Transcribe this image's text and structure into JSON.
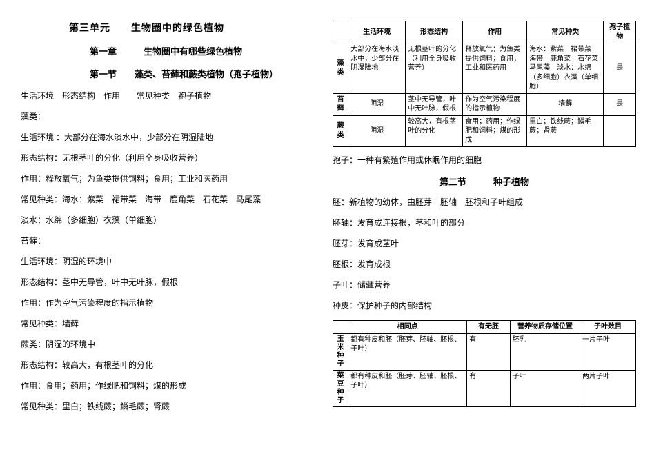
{
  "left": {
    "unit": "第三单元　　生物圈中的绿色植物",
    "chapter": "第一章　　　生物圈中有哪些绿色植物",
    "section": "第一节　　藻类、苔藓和蕨类植物（孢子植物）",
    "lines": [
      "生活环境　形态结构　作用　　常见种类　孢子植物",
      "藻类：",
      "生活环境 ：大部分在海水淡水中，少部分在阴湿陆地",
      "形态结构：无根茎叶的分化（利用全身吸收营养）",
      "作用：释放氧气；为鱼类提供饲料；食用；工业和医药用",
      "常见种类：海水：紫菜　裙带菜　海带　鹿角菜　石花菜　马尾藻",
      "淡水：水绵（多细胞）衣藻（单细胞）",
      "苔藓：",
      "生活环境：阴湿的环境中",
      "形态结构：茎中无导管，叶中无叶脉，假根",
      "作用：作为空气污染程度的指示植物",
      "常见种类：墙藓",
      "蕨类：阴湿的环境中",
      "形态结构：较高大，有根茎叶的分化",
      "作用：食用；药用；作绿肥和饲料；煤的形成",
      "常见种类：里白；铁线蕨；鳞毛蕨；肾蕨"
    ]
  },
  "right": {
    "table1": {
      "headers": [
        "",
        "生活环境",
        "形态结构",
        "作用",
        "常见种类",
        "孢子植物"
      ],
      "rows": [
        {
          "label": "藻类",
          "cells": [
            "大部分在海水淡水中，少部分在阴湿陆地",
            "无根茎叶的分化（利用全身吸收营养）",
            "释放氧气；为鱼类提供饲料；食用；工业和医药用",
            "海水：紫菜　裙带菜　海带　鹿角菜　石花菜　马尾藻　淡水：水绵（多细胞）衣藻（单细胞）",
            "是"
          ]
        },
        {
          "label": "苔藓",
          "cells": [
            "阴湿",
            "茎中无导管，叶中无叶脉，假根",
            "作为空气污染程度的指示植物",
            "墙藓",
            "是"
          ]
        },
        {
          "label": "蕨类",
          "cells": [
            "阴湿",
            "较高大，有根茎叶的分化",
            "食用；药用；作绿肥和饲料；煤的形成",
            "里白；铁线蕨；鳞毛蕨；肾蕨",
            ""
          ]
        }
      ]
    },
    "lines1": [
      "孢子：一种有繁殖作用或休眠作用的细胞"
    ],
    "section2": "第二节　　　种子植物",
    "lines2": [
      "胚：新植物的幼体，由胚芽　胚轴　胚根和子叶组成",
      "胚轴：发育成连接根，茎和叶的部分",
      "胚芽：发育成茎叶",
      "胚根：发育成根",
      "子叶：储藏营养",
      "种皮：保护种子的内部结构"
    ],
    "table2": {
      "headers": [
        "",
        "相同点",
        "有无胚",
        "营养物质存储位置",
        "子叶数目"
      ],
      "rows": [
        {
          "label": "玉米种子",
          "cells": [
            "都有种皮和胚（胚芽、胚轴、胚根、子叶）",
            "有",
            "胚乳",
            "一片子叶"
          ]
        },
        {
          "label": "菜豆种子",
          "cells": [
            "都有种皮和胚（胚芽、胚轴、胚根、子叶）",
            "有",
            "子叶",
            "两片子叶"
          ]
        }
      ]
    }
  }
}
